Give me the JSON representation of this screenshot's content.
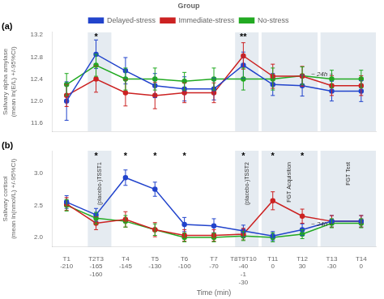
{
  "chart_data": [
    {
      "type": "line",
      "legend_title": "Group",
      "legend": "top",
      "panel_label": "(a)",
      "y_label": "Salivary alpha amylase\n(mean ln(E/L) +/-95%CI)",
      "categories": [
        "T1\n-210",
        "T2T3\n-165\n-160",
        "T4\n-145",
        "T5\n-130",
        "T6\n-100",
        "T7\n-70",
        "T8T9T10\n-40\n-1\n-30",
        "T11\n0",
        "T12\n30",
        "T13\n-30",
        "T14\n0"
      ],
      "tick_labels": "y",
      "grid": false,
      "ylim": [
        11.45,
        13.25
      ],
      "yticks": [
        11.6,
        {
          "value": 12,
          "label": "12.0"
        },
        12.4,
        12.8,
        13.2
      ],
      "series": [
        {
          "name": "Delayed-stress",
          "color": "#2244cc",
          "marker": "circle",
          "values": [
            12.0,
            12.85,
            12.55,
            12.28,
            12.22,
            12.22,
            12.65,
            12.3,
            12.28,
            12.18,
            12.18
          ],
          "errors": [
            0.35,
            0.26,
            0.24,
            0.22,
            0.22,
            0.2,
            0.24,
            0.2,
            0.19,
            0.18,
            0.19
          ]
        },
        {
          "name": "Immediate-stress",
          "color": "#cc2222",
          "marker": "circle",
          "values": [
            12.1,
            12.4,
            12.15,
            12.1,
            12.15,
            12.15,
            12.82,
            12.45,
            12.45,
            12.28,
            12.28
          ],
          "errors": [
            0.2,
            0.24,
            0.24,
            0.24,
            0.18,
            0.18,
            0.24,
            0.22,
            0.18,
            0.18,
            0.18
          ]
        },
        {
          "name": "No-stress",
          "color": "#22aa22",
          "marker": "circle",
          "values": [
            12.3,
            12.65,
            12.4,
            12.4,
            12.36,
            12.4,
            12.4,
            12.4,
            12.46,
            12.4,
            12.4
          ],
          "errors": [
            0.2,
            0.2,
            0.2,
            0.2,
            0.16,
            0.2,
            0.2,
            0.2,
            0.16,
            0.16,
            0.16
          ]
        }
      ],
      "shaded_regions": [
        [
          0.72,
          1.52
        ],
        [
          5.72,
          6.52
        ],
        [
          6.62,
          8.52
        ],
        [
          8.62,
          10.52
        ]
      ],
      "significance": [
        {
          "text": "*",
          "x": 1
        },
        {
          "text": "**",
          "x": 6
        }
      ],
      "annotations": [
        {
          "text": "~ 24h ~",
          "x": 8.3,
          "y": 12.45
        }
      ]
    },
    {
      "type": "line",
      "panel_label": "(b)",
      "y_label": "Salivary cortisol\n(mean ln(nmol/L) +/-95%CI)",
      "x_label": "Time (min)",
      "categories": [
        "T1\n-210",
        "T2T3\n-165\n-160",
        "T4\n-145",
        "T5\n-130",
        "T6\n-100",
        "T7\n-70",
        "T8T9T10\n-40\n-1\n-30",
        "T11\n0",
        "T12\n30",
        "T13\n-30",
        "T14\n0"
      ],
      "grid": false,
      "ylim": [
        1.85,
        3.35
      ],
      "yticks": [
        {
          "value": 2,
          "label": "2.0"
        },
        2.5,
        {
          "value": 3,
          "label": "3.0"
        }
      ],
      "series": [
        {
          "name": "Delayed-stress",
          "color": "#2244cc",
          "marker": "circle",
          "values": [
            2.55,
            2.35,
            2.93,
            2.75,
            2.2,
            2.18,
            2.1,
            2.02,
            2.12,
            2.25,
            2.25
          ],
          "errors": [
            0.1,
            0.1,
            0.12,
            0.11,
            0.11,
            0.11,
            0.09,
            0.07,
            0.09,
            0.09,
            0.09
          ]
        },
        {
          "name": "Immediate-stress",
          "color": "#cc2222",
          "marker": "circle",
          "values": [
            2.52,
            2.22,
            2.28,
            2.12,
            2.03,
            2.03,
            2.05,
            2.57,
            2.33,
            2.25,
            2.25
          ],
          "errors": [
            0.1,
            0.1,
            0.12,
            0.11,
            0.09,
            0.09,
            0.09,
            0.14,
            0.11,
            0.09,
            0.09
          ]
        },
        {
          "name": "No-stress",
          "color": "#22aa22",
          "marker": "circle",
          "values": [
            2.5,
            2.3,
            2.25,
            2.12,
            2.0,
            2.0,
            2.02,
            2.0,
            2.05,
            2.22,
            2.22
          ],
          "errors": [
            0.09,
            0.09,
            0.09,
            0.09,
            0.07,
            0.07,
            0.07,
            0.07,
            0.07,
            0.07,
            0.07
          ]
        }
      ],
      "shaded_regions": [
        [
          0.72,
          1.52
        ],
        [
          5.72,
          6.52
        ],
        [
          6.62,
          8.52
        ],
        [
          8.62,
          10.52
        ]
      ],
      "significance": [
        {
          "text": "*",
          "x": 1
        },
        {
          "text": "*",
          "x": 2
        },
        {
          "text": "*",
          "x": 3
        },
        {
          "text": "*",
          "x": 4
        },
        {
          "text": "*",
          "x": 6
        },
        {
          "text": "*",
          "x": 7
        },
        {
          "text": "*",
          "x": 8
        }
      ],
      "region_labels": [
        {
          "text": "(placebo-)TSST1",
          "x": 1.12
        },
        {
          "text": "(placebo-)TSST2",
          "x": 6.12
        },
        {
          "text": "FGT Acquisition",
          "x": 7.57
        },
        {
          "text": "FGT Test",
          "x": 9.57
        }
      ],
      "annotations": [
        {
          "text": "~ 24h ~",
          "x": 8.3,
          "y": 2.18
        }
      ]
    }
  ]
}
